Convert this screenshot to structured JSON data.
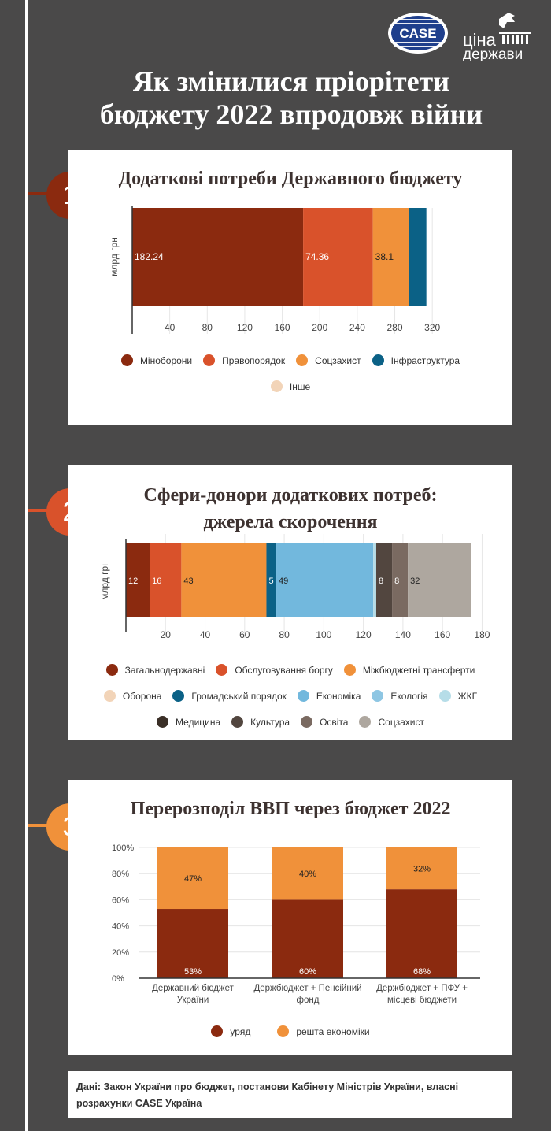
{
  "header": {
    "title_line1": "Як змінилися пріорітети",
    "title_line2": "бюджету 2022 впродовж війни",
    "logo_case_text": "CASE",
    "logo_tsina_line1": "ціна",
    "logo_tsina_line2": "держави"
  },
  "badges": [
    "1",
    "2",
    "3"
  ],
  "colors": {
    "minoborony": "#8b2a0f",
    "pravoporyadok": "#d9522b",
    "sotszakhyst": "#f0913a",
    "infrastruktura": "#0b6186",
    "inshe": "#f2d4b8",
    "zahalnoderzhavni": "#8b2a0f",
    "borh": "#d9522b",
    "transferty": "#f0913a",
    "oborona": "#f2d4b8",
    "hromporyadok": "#0b6186",
    "ekonomika": "#72b8dd",
    "ekolohiya": "#8ec6e3",
    "zhkh": "#b6dde8",
    "medytsyna": "#3a2f27",
    "kultura": "#52463f",
    "osvita": "#7a6a61",
    "sotszakhyst2": "#aea79f",
    "uryad": "#8b2a0f",
    "reshta": "#f0913a"
  },
  "chart_data": [
    {
      "type": "bar",
      "orientation": "horizontal",
      "stacked": true,
      "title": "Додаткові потреби Державного бюджету",
      "ylabel": "млрд грн",
      "xlim": [
        0,
        340
      ],
      "xticks": [
        "40",
        "80",
        "120",
        "160",
        "200",
        "240",
        "280",
        "320"
      ],
      "series": [
        {
          "name": "Міноборони",
          "value": 182.24,
          "label": "182.24"
        },
        {
          "name": "Правопорядок",
          "value": 74.36,
          "label": "74.36"
        },
        {
          "name": "Соцзахист",
          "value": 38.1,
          "label": "38.1"
        },
        {
          "name": "Інфраструктура",
          "value": 19,
          "label": ""
        },
        {
          "name": "Інше",
          "value": 0,
          "label": ""
        }
      ],
      "legend_placement": "bottom"
    },
    {
      "type": "bar",
      "orientation": "horizontal",
      "stacked": true,
      "title_line1": "Сфери-донори додаткових потреб:",
      "title_line2": "джерела скорочення",
      "ylabel": "млрд грн",
      "xlim": [
        0,
        185
      ],
      "xticks": [
        "20",
        "40",
        "60",
        "80",
        "100",
        "120",
        "140",
        "160",
        "180"
      ],
      "series": [
        {
          "name": "Загальнодержавні",
          "value": 12,
          "label": "12"
        },
        {
          "name": "Обслуговування боргу",
          "value": 16,
          "label": "16"
        },
        {
          "name": "Міжбюджетні трансферти",
          "value": 43,
          "label": "43"
        },
        {
          "name": "Оборона",
          "value": 0,
          "label": ""
        },
        {
          "name": "Громадський порядок",
          "value": 5,
          "label": "5"
        },
        {
          "name": "Економіка",
          "value": 49,
          "label": "49"
        },
        {
          "name": "Екологія",
          "value": 0,
          "label": ""
        },
        {
          "name": "ЖКГ",
          "value": 1.5,
          "label": ""
        },
        {
          "name": "Медицина",
          "value": 0,
          "label": ""
        },
        {
          "name": "Культура",
          "value": 8,
          "label": "8"
        },
        {
          "name": "Освіта",
          "value": 8,
          "label": "8"
        },
        {
          "name": "Соцзахист",
          "value": 32,
          "label": "32"
        }
      ],
      "legend_placement": "bottom"
    },
    {
      "type": "bar",
      "stacked": true,
      "percent": true,
      "title": "Перерозподіл ВВП через бюджет 2022",
      "categories": [
        [
          "Державний бюджет",
          "України"
        ],
        [
          "Держбюджет + Пенсійний",
          "фонд"
        ],
        [
          "Держбюджет + ПФУ +",
          "місцеві бюджети"
        ]
      ],
      "yticks": [
        "0%",
        "20%",
        "40%",
        "60%",
        "80%",
        "100%"
      ],
      "ylim": [
        0,
        100
      ],
      "series": [
        {
          "name": "уряд",
          "values": [
            53,
            60,
            68
          ],
          "labels": [
            "53%",
            "60%",
            "68%"
          ]
        },
        {
          "name": "решта економіки",
          "values": [
            47,
            40,
            32
          ],
          "labels": [
            "47%",
            "40%",
            "32%"
          ]
        }
      ],
      "legend_placement": "bottom"
    }
  ],
  "source": {
    "line1": "Дані: Закон України про бюджет, постанови Кабінету Міністрів України, власні",
    "line2": "розрахунки CASE Україна"
  }
}
